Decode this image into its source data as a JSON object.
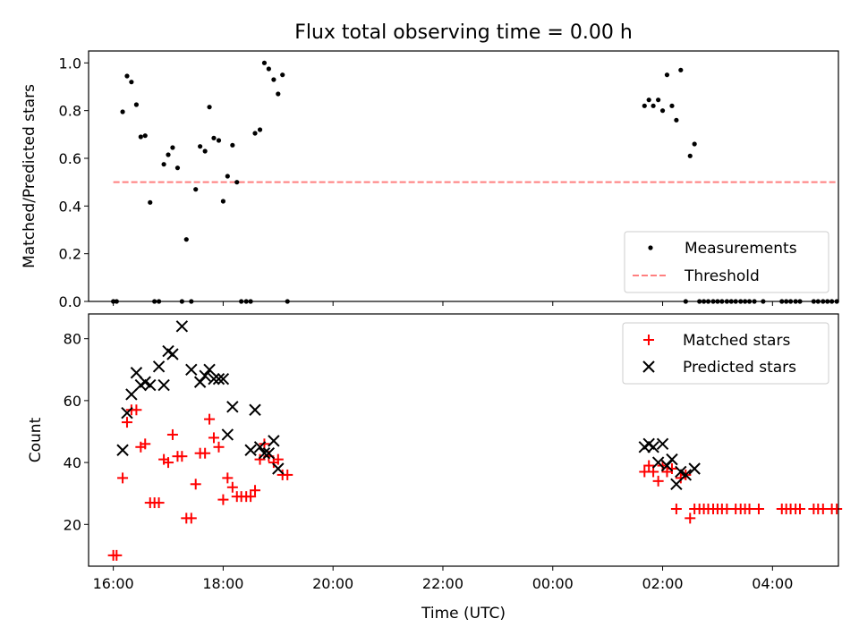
{
  "chart_data": {
    "title": "Flux total observing time = 0.00 h",
    "xlabel": "Time (UTC)",
    "x_unit": "hours after 2024-01-01 00:00 UTC",
    "xlim": [
      15.55,
      29.2
    ],
    "x_ticks": [
      {
        "x": 16,
        "label": "16:00"
      },
      {
        "x": 18,
        "label": "18:00"
      },
      {
        "x": 20,
        "label": "20:00"
      },
      {
        "x": 22,
        "label": "22:00"
      },
      {
        "x": 24,
        "label": "00:00"
      },
      {
        "x": 26,
        "label": "02:00"
      },
      {
        "x": 28,
        "label": "04:00"
      }
    ],
    "panels": [
      {
        "type": "scatter",
        "ylabel": "Matched/Predicted stars",
        "ylim": [
          0,
          1.05
        ],
        "y_ticks": [
          0.0,
          0.2,
          0.4,
          0.6,
          0.8,
          1.0
        ],
        "y_tick_labels": [
          "0.0",
          "0.2",
          "0.4",
          "0.6",
          "0.8",
          "1.0"
        ],
        "legend_position": "bottom-right",
        "series": [
          {
            "name": "Measurements",
            "marker": "dot",
            "color": "#000000",
            "points": [
              [
                16.0,
                0.0
              ],
              [
                16.06,
                0.0
              ],
              [
                16.17,
                0.795
              ],
              [
                16.25,
                0.945
              ],
              [
                16.33,
                0.92
              ],
              [
                16.42,
                0.825
              ],
              [
                16.5,
                0.69
              ],
              [
                16.58,
                0.695
              ],
              [
                16.67,
                0.415
              ],
              [
                16.75,
                0.0
              ],
              [
                16.83,
                0.0
              ],
              [
                16.92,
                0.575
              ],
              [
                17.0,
                0.615
              ],
              [
                17.08,
                0.645
              ],
              [
                17.17,
                0.56
              ],
              [
                17.25,
                0.0
              ],
              [
                17.33,
                0.26
              ],
              [
                17.42,
                0.0
              ],
              [
                17.5,
                0.47
              ],
              [
                17.58,
                0.65
              ],
              [
                17.67,
                0.63
              ],
              [
                17.75,
                0.815
              ],
              [
                17.83,
                0.685
              ],
              [
                17.92,
                0.675
              ],
              [
                18.0,
                0.42
              ],
              [
                18.08,
                0.525
              ],
              [
                18.17,
                0.655
              ],
              [
                18.25,
                0.5
              ],
              [
                18.33,
                0.0
              ],
              [
                18.42,
                0.0
              ],
              [
                18.5,
                0.0
              ],
              [
                18.58,
                0.705
              ],
              [
                18.67,
                0.72
              ],
              [
                18.75,
                1.0
              ],
              [
                18.83,
                0.975
              ],
              [
                18.92,
                0.93
              ],
              [
                19.0,
                0.87
              ],
              [
                19.08,
                0.95
              ],
              [
                19.17,
                0.0
              ],
              [
                25.67,
                0.82
              ],
              [
                25.75,
                0.845
              ],
              [
                25.83,
                0.82
              ],
              [
                25.92,
                0.845
              ],
              [
                26.0,
                0.8
              ],
              [
                26.08,
                0.95
              ],
              [
                26.17,
                0.82
              ],
              [
                26.25,
                0.76
              ],
              [
                26.33,
                0.97
              ],
              [
                26.42,
                0.0
              ],
              [
                26.5,
                0.61
              ],
              [
                26.58,
                0.66
              ],
              [
                26.67,
                0.0
              ],
              [
                26.75,
                0.0
              ],
              [
                26.83,
                0.0
              ],
              [
                26.92,
                0.0
              ],
              [
                27.0,
                0.0
              ],
              [
                27.08,
                0.0
              ],
              [
                27.17,
                0.0
              ],
              [
                27.25,
                0.0
              ],
              [
                27.33,
                0.0
              ],
              [
                27.42,
                0.0
              ],
              [
                27.5,
                0.0
              ],
              [
                27.58,
                0.0
              ],
              [
                27.67,
                0.0
              ],
              [
                27.83,
                0.0
              ],
              [
                28.17,
                0.0
              ],
              [
                28.25,
                0.0
              ],
              [
                28.33,
                0.0
              ],
              [
                28.42,
                0.0
              ],
              [
                28.5,
                0.0
              ],
              [
                28.75,
                0.0
              ],
              [
                28.83,
                0.0
              ],
              [
                28.92,
                0.0
              ],
              [
                29.0,
                0.0
              ],
              [
                29.08,
                0.0
              ],
              [
                29.17,
                0.0
              ]
            ]
          },
          {
            "name": "Threshold",
            "marker": "dashed-line",
            "color": "#ff7f7f",
            "points": [
              [
                16.0,
                0.5
              ],
              [
                29.17,
                0.5
              ]
            ]
          }
        ]
      },
      {
        "type": "scatter",
        "ylabel": "Count",
        "ylim": [
          6.5,
          88
        ],
        "y_ticks": [
          20,
          40,
          60,
          80
        ],
        "y_tick_labels": [
          "20",
          "40",
          "60",
          "80"
        ],
        "legend_position": "top-right",
        "series": [
          {
            "name": "Matched stars",
            "marker": "plus",
            "color": "#ff0000",
            "points": [
              [
                16.0,
                10
              ],
              [
                16.06,
                10
              ],
              [
                16.17,
                35
              ],
              [
                16.25,
                53
              ],
              [
                16.33,
                57
              ],
              [
                16.42,
                57
              ],
              [
                16.5,
                45
              ],
              [
                16.58,
                46
              ],
              [
                16.67,
                27
              ],
              [
                16.75,
                27
              ],
              [
                16.83,
                27
              ],
              [
                16.92,
                41
              ],
              [
                17.0,
                40
              ],
              [
                17.08,
                49
              ],
              [
                17.17,
                42
              ],
              [
                17.25,
                42
              ],
              [
                17.33,
                22
              ],
              [
                17.42,
                22
              ],
              [
                17.5,
                33
              ],
              [
                17.58,
                43
              ],
              [
                17.67,
                43
              ],
              [
                17.75,
                54
              ],
              [
                17.83,
                48
              ],
              [
                17.92,
                45
              ],
              [
                18.0,
                28
              ],
              [
                18.08,
                35
              ],
              [
                18.17,
                32
              ],
              [
                18.25,
                29
              ],
              [
                18.33,
                29
              ],
              [
                18.42,
                29
              ],
              [
                18.5,
                29
              ],
              [
                18.58,
                31
              ],
              [
                18.67,
                41
              ],
              [
                18.75,
                46
              ],
              [
                18.83,
                42
              ],
              [
                18.92,
                40
              ],
              [
                19.0,
                41
              ],
              [
                19.08,
                36
              ],
              [
                19.17,
                36
              ],
              [
                25.67,
                37
              ],
              [
                25.75,
                39
              ],
              [
                25.83,
                37
              ],
              [
                25.92,
                34
              ],
              [
                26.0,
                39
              ],
              [
                26.08,
                37
              ],
              [
                26.17,
                38
              ],
              [
                26.25,
                25
              ],
              [
                26.33,
                35
              ],
              [
                26.42,
                36
              ],
              [
                26.5,
                22
              ],
              [
                26.58,
                25
              ],
              [
                26.67,
                25
              ],
              [
                26.75,
                25
              ],
              [
                26.83,
                25
              ],
              [
                26.92,
                25
              ],
              [
                27.0,
                25
              ],
              [
                27.08,
                25
              ],
              [
                27.17,
                25
              ],
              [
                27.33,
                25
              ],
              [
                27.42,
                25
              ],
              [
                27.5,
                25
              ],
              [
                27.58,
                25
              ],
              [
                27.75,
                25
              ],
              [
                28.17,
                25
              ],
              [
                28.25,
                25
              ],
              [
                28.33,
                25
              ],
              [
                28.42,
                25
              ],
              [
                28.5,
                25
              ],
              [
                28.75,
                25
              ],
              [
                28.83,
                25
              ],
              [
                28.92,
                25
              ],
              [
                29.08,
                25
              ],
              [
                29.17,
                25
              ]
            ]
          },
          {
            "name": "Predicted stars",
            "marker": "x",
            "color": "#000000",
            "points": [
              [
                16.17,
                44
              ],
              [
                16.25,
                56
              ],
              [
                16.33,
                62
              ],
              [
                16.42,
                69
              ],
              [
                16.5,
                65
              ],
              [
                16.58,
                66
              ],
              [
                16.67,
                65
              ],
              [
                16.83,
                71
              ],
              [
                16.92,
                65
              ],
              [
                17.0,
                76
              ],
              [
                17.08,
                75
              ],
              [
                17.25,
                84
              ],
              [
                17.42,
                70
              ],
              [
                17.58,
                66
              ],
              [
                17.67,
                68
              ],
              [
                17.75,
                70
              ],
              [
                17.83,
                67
              ],
              [
                17.92,
                67
              ],
              [
                18.0,
                67
              ],
              [
                18.08,
                49
              ],
              [
                18.17,
                58
              ],
              [
                18.5,
                44
              ],
              [
                18.58,
                57
              ],
              [
                18.67,
                45
              ],
              [
                18.75,
                43
              ],
              [
                18.83,
                43
              ],
              [
                18.92,
                47
              ],
              [
                19.0,
                38
              ],
              [
                25.67,
                45
              ],
              [
                25.75,
                46
              ],
              [
                25.83,
                45
              ],
              [
                25.92,
                40
              ],
              [
                26.0,
                46
              ],
              [
                26.08,
                39
              ],
              [
                26.17,
                41
              ],
              [
                26.25,
                33
              ],
              [
                26.33,
                37
              ],
              [
                26.42,
                36
              ],
              [
                26.58,
                38
              ]
            ]
          }
        ]
      }
    ]
  }
}
